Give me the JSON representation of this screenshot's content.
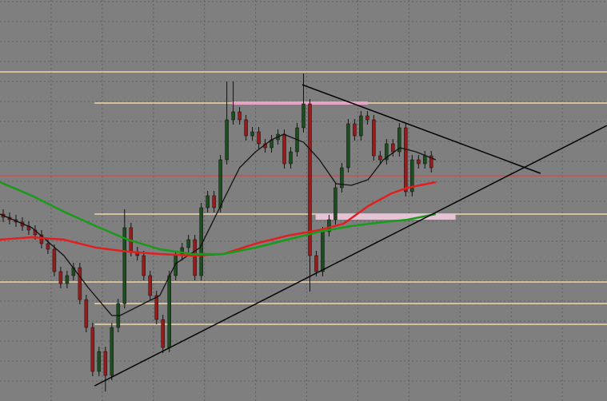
{
  "chart_data": {
    "type": "candlestick",
    "xlim": [
      0,
      95
    ],
    "ylim": [
      0,
      502
    ],
    "xticks": [
      8,
      16,
      24,
      32,
      40,
      48,
      56,
      64,
      72,
      80,
      88
    ],
    "yticks": [
      25,
      50,
      75,
      100,
      125,
      150,
      175,
      200,
      225,
      250,
      275,
      300,
      325,
      350,
      375,
      400,
      425,
      450,
      475,
      500
    ],
    "grid": true,
    "background": "#7f7f7f",
    "up_color": "#1f4a22",
    "down_color": "#8e1f1f",
    "wick_color": "#111111",
    "open": [
      234,
      230,
      227,
      224,
      219,
      214,
      208,
      197,
      190,
      162,
      147,
      157,
      167,
      127,
      92,
      37,
      62,
      32,
      92,
      122,
      217,
      187,
      182,
      157,
      132,
      102,
      67,
      157,
      182,
      192,
      202,
      157,
      242,
      257,
      242,
      302,
      352,
      362,
      352,
      332,
      337,
      322,
      317,
      327,
      334,
      297,
      312,
      342,
      372,
      182,
      162,
      212,
      227,
      267,
      292,
      347,
      332,
      357,
      352,
      307,
      302,
      322,
      312,
      342,
      262,
      302,
      297,
      307
    ],
    "high": [
      240,
      236,
      233,
      230,
      225,
      220,
      214,
      203,
      196,
      168,
      163,
      173,
      173,
      133,
      98,
      68,
      68,
      98,
      128,
      240,
      223,
      193,
      188,
      163,
      138,
      108,
      163,
      188,
      198,
      208,
      208,
      248,
      263,
      263,
      308,
      400,
      400,
      368,
      358,
      343,
      343,
      328,
      333,
      340,
      340,
      318,
      348,
      410,
      378,
      188,
      218,
      233,
      273,
      298,
      353,
      353,
      363,
      363,
      358,
      313,
      328,
      328,
      348,
      348,
      308,
      308,
      313,
      313
    ],
    "low": [
      224,
      221,
      218,
      213,
      208,
      202,
      191,
      184,
      156,
      141,
      141,
      151,
      121,
      86,
      31,
      31,
      12,
      26,
      86,
      116,
      181,
      176,
      151,
      126,
      96,
      60,
      61,
      151,
      176,
      186,
      151,
      151,
      236,
      236,
      236,
      296,
      346,
      346,
      326,
      326,
      316,
      311,
      311,
      321,
      291,
      291,
      306,
      336,
      137,
      156,
      156,
      206,
      221,
      261,
      286,
      326,
      326,
      346,
      301,
      296,
      296,
      306,
      306,
      256,
      256,
      291,
      291,
      286
    ],
    "close": [
      230,
      227,
      224,
      219,
      214,
      208,
      197,
      190,
      162,
      147,
      157,
      167,
      127,
      92,
      37,
      62,
      32,
      92,
      122,
      217,
      187,
      182,
      157,
      132,
      102,
      67,
      157,
      182,
      192,
      202,
      157,
      242,
      257,
      242,
      302,
      352,
      362,
      352,
      332,
      337,
      322,
      317,
      327,
      334,
      297,
      312,
      342,
      372,
      182,
      162,
      212,
      227,
      267,
      292,
      347,
      332,
      357,
      352,
      307,
      302,
      322,
      312,
      342,
      262,
      302,
      297,
      307,
      292
    ],
    "series": [
      {
        "color": "#111111",
        "x": [
          0,
          5,
          10,
          13.8,
          17.5,
          18.8,
          22.5,
          25,
          27.5,
          31.3,
          35,
          37.5,
          40,
          42.5,
          44.4,
          47.5,
          50,
          52.6,
          55,
          57.6,
          60,
          62.6,
          65.1,
          68.2
        ],
        "values": [
          234,
          217,
          182,
          142,
          107,
          107,
          122,
          132,
          172,
          192,
          252,
          292,
          312,
          327,
          334,
          324,
          302,
          272,
          270,
          277,
          302,
          317,
          312,
          302
        ]
      },
      {
        "color": "#e02020",
        "x": [
          0,
          5,
          10,
          15,
          20,
          25,
          30,
          35,
          40,
          45,
          50,
          53.8,
          57.6,
          61.3,
          63.8,
          68.2
        ],
        "values": [
          202,
          205,
          202,
          192,
          187,
          184,
          182,
          184,
          197,
          207,
          214,
          222,
          244,
          260,
          267,
          274
        ]
      },
      {
        "color": "#1a9a1a",
        "x": [
          0,
          5,
          10,
          15,
          20,
          25,
          30,
          35,
          40,
          45,
          50,
          55,
          60,
          63.8,
          68.2
        ],
        "values": [
          274,
          257,
          237,
          219,
          202,
          190,
          184,
          184,
          192,
          202,
          212,
          219,
          224,
          227,
          234
        ]
      }
    ],
    "hlines": [
      {
        "value": 412,
        "from": 0,
        "color": "#f3d7aa"
      },
      {
        "value": 373,
        "from": 14.8,
        "color": "#f3d7aa"
      },
      {
        "value": 282,
        "from": 0,
        "color": "#c9504f"
      },
      {
        "value": 234,
        "from": 14.8,
        "color": "#f3d7aa"
      },
      {
        "value": 149,
        "from": 0,
        "color": "#f3d7aa"
      },
      {
        "value": 122,
        "from": 14.8,
        "color": "#f3d7aa"
      },
      {
        "value": 96,
        "from": 14.8,
        "color": "#f3d7aa"
      }
    ],
    "zones": [
      {
        "x": [
          36.3,
          57.6
        ],
        "y": [
          371,
          375
        ],
        "color": "#e8a2c6"
      },
      {
        "x": [
          49.4,
          71.3
        ],
        "y": [
          227,
          234
        ],
        "color": "#e4c4d4"
      }
    ],
    "trendlines": [
      {
        "x": [
          14.8,
          95
        ],
        "values": [
          19,
          345
        ],
        "color": "#000000"
      },
      {
        "x": [
          47.3,
          84.6
        ],
        "values": [
          396,
          285
        ],
        "color": "#000000"
      }
    ]
  }
}
